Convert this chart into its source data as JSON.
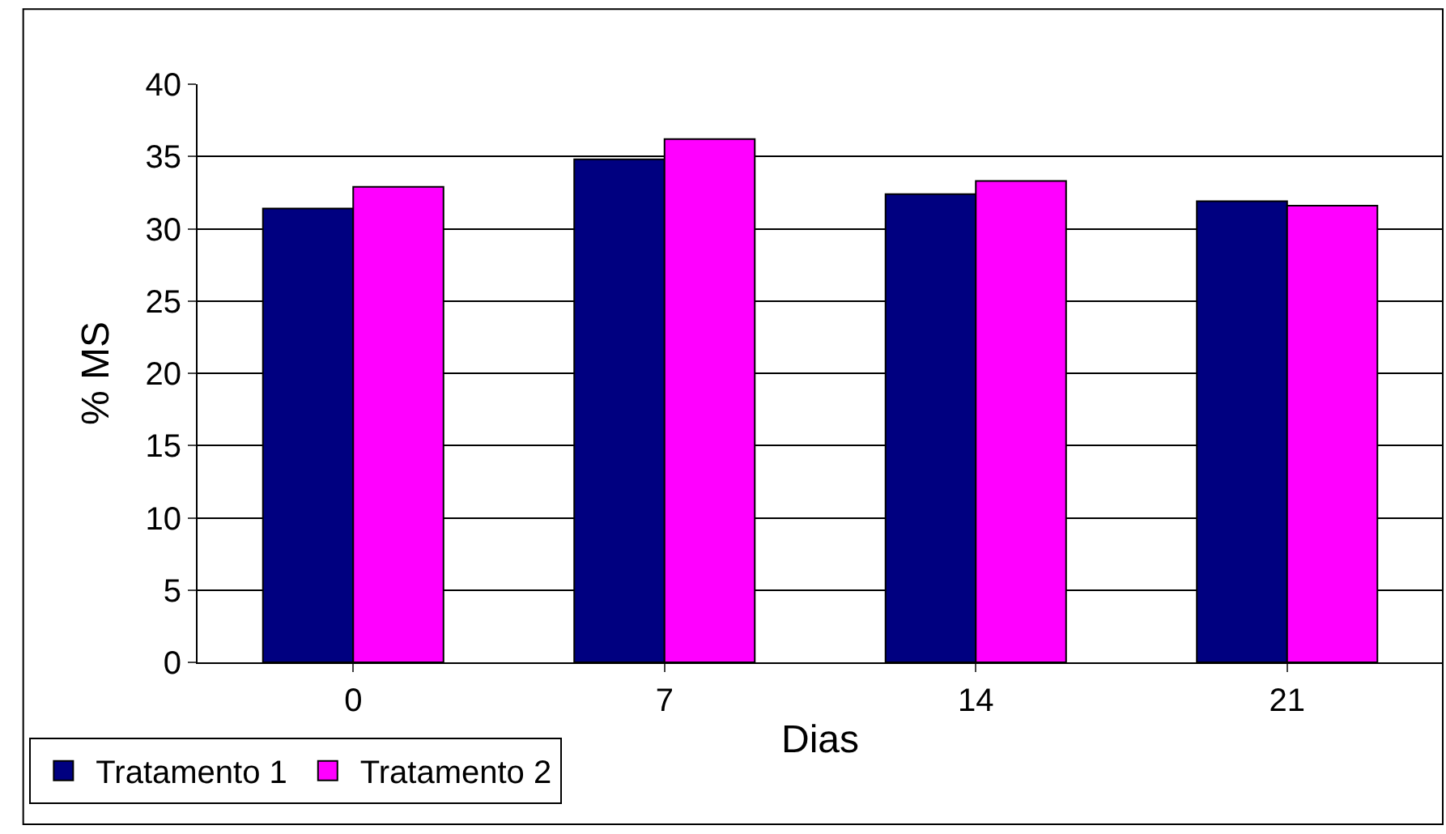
{
  "chart_data": {
    "type": "bar",
    "xlabel": "Dias",
    "ylabel": "% MS",
    "categories": [
      "0",
      "7",
      "14",
      "21"
    ],
    "series": [
      {
        "name": "Tratamento 1",
        "color": "#000080",
        "values": [
          31.4,
          34.8,
          32.4,
          31.9
        ]
      },
      {
        "name": "Tratamento 2",
        "color": "#ff00ff",
        "values": [
          32.9,
          36.2,
          33.3,
          31.6
        ]
      }
    ],
    "ylim": [
      0,
      40
    ],
    "yticks": [
      0,
      5,
      10,
      15,
      20,
      25,
      30,
      35,
      40
    ],
    "grid": "y",
    "legend": "bottom left"
  }
}
